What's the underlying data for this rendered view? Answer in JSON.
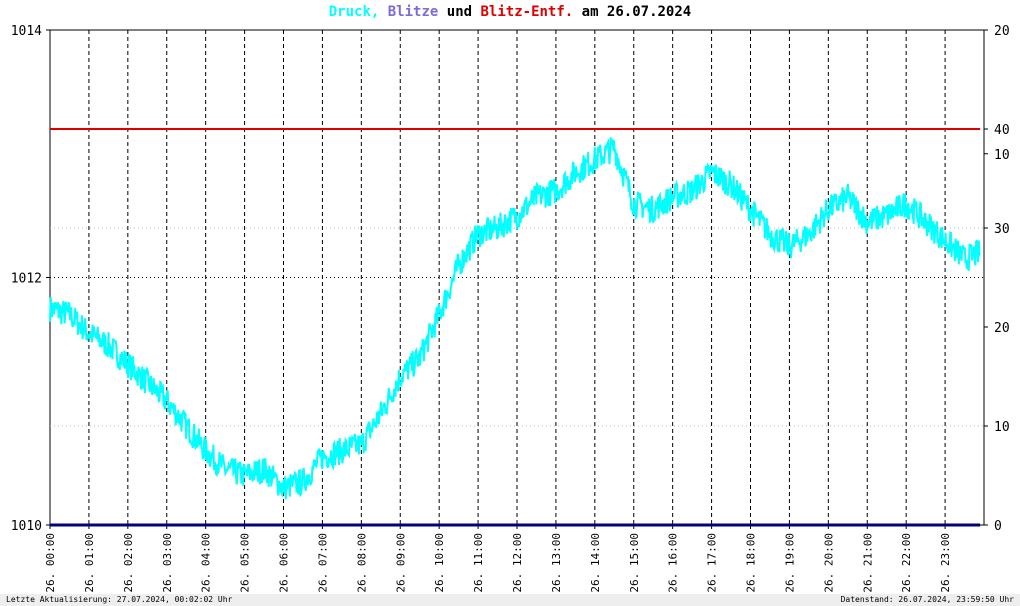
{
  "title": {
    "part1": "Druck,",
    "part2": " Blitze",
    "part3": " und ",
    "part4": "Blitz-Entf.",
    "part5": " am 26.07.2024"
  },
  "colors": {
    "pressure": "#00ffff",
    "lightning": "#7b6cd6",
    "distance": "#dd0000",
    "text": "#000000",
    "axis_base": "#000080"
  },
  "footer": {
    "left": "Letzte Aktualisierung: 27.07.2024, 00:02:02 Uhr",
    "right": "Datenstand: 26.07.2024, 23:59:50 Uhr"
  },
  "chart_data": {
    "type": "line",
    "date": "26.07.2024",
    "left_axis": {
      "ylim": [
        1010,
        1014
      ],
      "ticks": [
        "1014",
        "1012",
        "1010"
      ]
    },
    "right_axis": {
      "ticks": [
        {
          "label": "20",
          "lightning": 20
        },
        {
          "label": "40",
          "distance": 40
        },
        {
          "label": "30",
          "distance": 30
        },
        {
          "label": "10",
          "lightning": 10
        },
        {
          "label": "20",
          "distance": 20
        },
        {
          "label": "10",
          "distance": 10
        },
        {
          "label": "0",
          "distance": 0
        }
      ]
    },
    "x_ticks": [
      "26. 00:00",
      "26. 01:00",
      "26. 02:00",
      "26. 03:00",
      "26. 04:00",
      "26. 05:00",
      "26. 06:00",
      "26. 07:00",
      "26. 08:00",
      "26. 09:00",
      "26. 10:00",
      "26. 11:00",
      "26. 12:00",
      "26. 13:00",
      "26. 14:00",
      "26. 15:00",
      "26. 16:00",
      "26. 17:00",
      "26. 18:00",
      "26. 19:00",
      "26. 20:00",
      "26. 21:00",
      "26. 22:00",
      "26. 23:00"
    ],
    "grid": true,
    "series": [
      {
        "name": "Druck",
        "x_hours": [
          0,
          0.5,
          1,
          1.5,
          2,
          2.5,
          3,
          3.5,
          4,
          4.5,
          5,
          5.5,
          6,
          6.5,
          7,
          7.5,
          8,
          8.5,
          9,
          9.5,
          10,
          10.5,
          11,
          11.5,
          12,
          12.5,
          13,
          13.5,
          14,
          14.5,
          15,
          15.5,
          16,
          16.5,
          17,
          17.5,
          18,
          18.5,
          19,
          19.5,
          20,
          20.5,
          21,
          21.5,
          22,
          22.5,
          23,
          23.5,
          23.9
        ],
        "values": [
          1011.75,
          1011.7,
          1011.55,
          1011.45,
          1011.3,
          1011.15,
          1011.0,
          1010.8,
          1010.6,
          1010.45,
          1010.4,
          1010.45,
          1010.3,
          1010.35,
          1010.55,
          1010.6,
          1010.65,
          1010.9,
          1011.2,
          1011.35,
          1011.7,
          1012.1,
          1012.35,
          1012.4,
          1012.5,
          1012.65,
          1012.7,
          1012.85,
          1012.95,
          1013.05,
          1012.6,
          1012.55,
          1012.65,
          1012.7,
          1012.85,
          1012.75,
          1012.55,
          1012.35,
          1012.25,
          1012.35,
          1012.55,
          1012.65,
          1012.45,
          1012.5,
          1012.6,
          1012.45,
          1012.3,
          1012.15,
          1012.2
        ]
      },
      {
        "name": "Blitz-Entf.",
        "x_hours": [
          0,
          23.9
        ],
        "values": [
          40,
          40
        ]
      },
      {
        "name": "Blitze",
        "x_hours": [
          0,
          23.9
        ],
        "values": [
          0,
          0
        ]
      }
    ]
  }
}
